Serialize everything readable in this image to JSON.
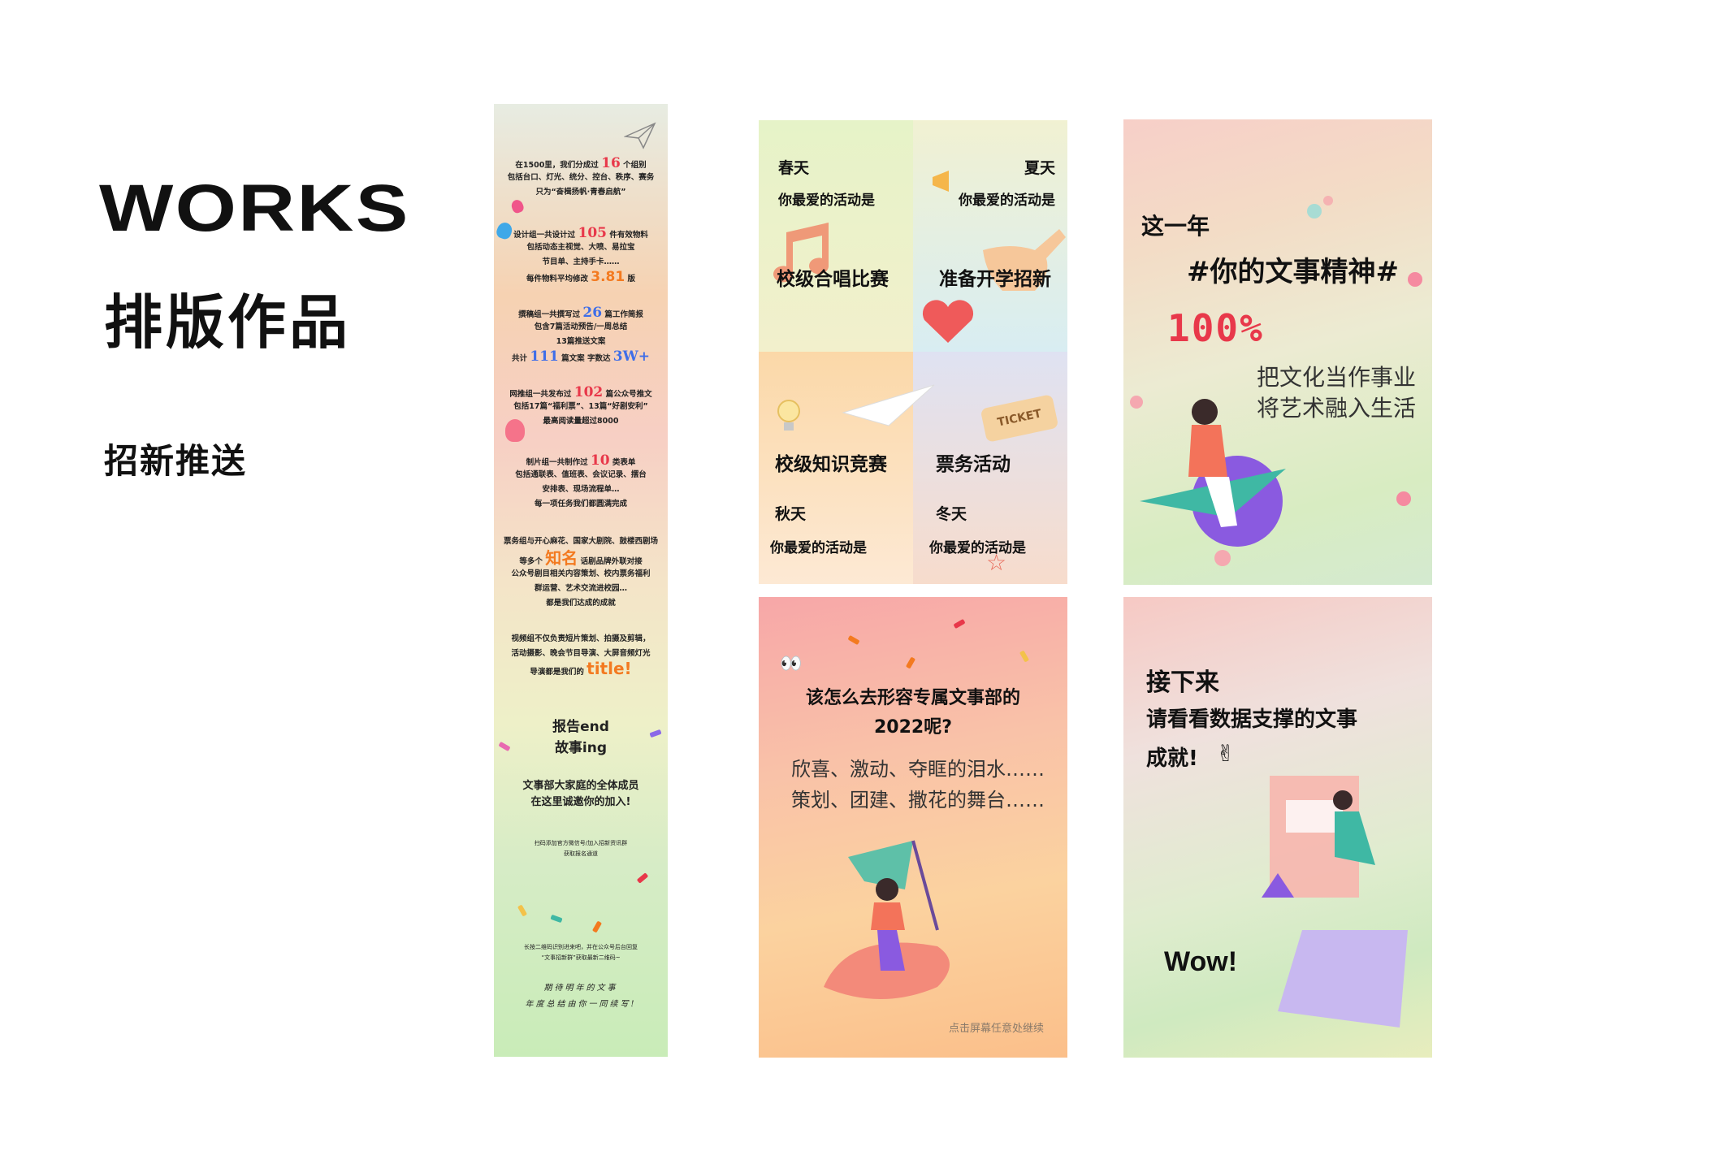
{
  "header": {
    "works": "WORKS",
    "subtitle": "排版作品",
    "section": "招新推送"
  },
  "long_poster": {
    "p1": [
      "在1500里，我们分成过",
      "16",
      "个组别",
      "包括台口、灯光、统分、控台、秩序、赛务",
      "只为“奋楫扬帆·青春启航”"
    ],
    "p2": [
      "设计组一共设计过",
      "105",
      "件有效物料",
      "包括动态主视觉、大喷、易拉宝",
      "节目单、主持手卡……",
      "每件物料平均修改",
      "3.81",
      "版"
    ],
    "p3": [
      "撰稿组一共撰写过",
      "26",
      "篇工作简报",
      "包含7篇活动预告/一周总结",
      "13篇推送文案",
      "共计",
      "111",
      "篇文案 字数达",
      "3W+"
    ],
    "p4": [
      "网推组一共发布过",
      "102",
      "篇公众号推文",
      "包括17篇“福利票”、13篇“好剧安利”",
      "最高阅读量超过8000"
    ],
    "p5": [
      "制片组一共制作过",
      "10",
      "类表单",
      "包括通联表、值班表、会议记录、摆台",
      "安排表、现场流程单…",
      "每一项任务我们都圆满完成"
    ],
    "p6": [
      "票务组与开心麻花、国家大剧院、鼓楼西剧场",
      "等多个",
      "知名",
      "话剧品牌外联对接",
      "公众号剧目相关内容策划、校内票务福利",
      "群运营、艺术交流进校园…",
      "都是我们达成的成就"
    ],
    "p7": [
      "视频组不仅负责短片策划、拍摄及剪辑，",
      "活动摄影、晚会节目导演、大屏音频灯光",
      "导演都是我们的",
      "title!"
    ],
    "end": [
      "报告end",
      "故事ing"
    ],
    "invite": [
      "文事部大家庭的全体成员",
      "在这里诚邀你的加入!"
    ],
    "qr": [
      "扫码添加官方微信号/加入招新资讯群",
      "获取报名通道"
    ],
    "follow": [
      "长按二维码识别进来吧，并在公众号后台回复",
      "“文事招新群”获取最新二维码~"
    ],
    "hand": [
      "期待明年的文事",
      "年度总结由你一同续写!"
    ]
  },
  "season_card": {
    "spring": {
      "name": "春天",
      "q": "你最爱的活动是",
      "event": "校级合唱比赛"
    },
    "summer": {
      "name": "夏天",
      "q": "你最爱的活动是",
      "event": "准备开学招新"
    },
    "autumn": {
      "event": "校级知识竞赛",
      "name": "秋天",
      "q": "你最爱的活动是"
    },
    "winter": {
      "event": "票务活动",
      "name": "冬天",
      "q": "你最爱的活动是"
    },
    "ticket": "TICKET"
  },
  "spirit_card": {
    "line1": "这一年",
    "line2": "#你的文事精神#",
    "percent": "100%",
    "slogan1": "把文化当作事业",
    "slogan2": "将艺术融入生活"
  },
  "year_card": {
    "q1": "该怎么去形容专属文事部的",
    "q2": "2022呢?",
    "l1": "欣喜、激动、夺眶的泪水……",
    "l2": "策划、团建、撒花的舞台……",
    "hint": "点击屏幕任意处继续"
  },
  "wow_card": {
    "l1": "接下来",
    "l2": "请看看数据支撑的文事",
    "l3": "成就!",
    "wow": "Wow!",
    "emoji": "✌"
  },
  "colors": {
    "red": "#e8384a",
    "blue": "#3f6ee8",
    "orange": "#f37a20",
    "teal": "#3fb8a4"
  }
}
